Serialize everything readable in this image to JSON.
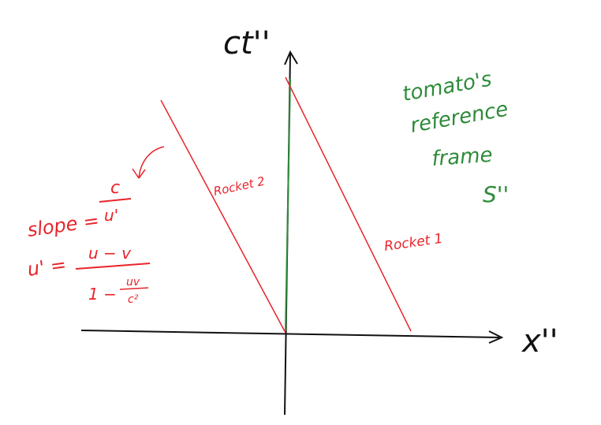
{
  "axes": {
    "x_label": "x''",
    "y_label": "ct''"
  },
  "rockets": [
    {
      "label": "Rocket 1"
    },
    {
      "label": "Rocket 2"
    }
  ],
  "frame_note": {
    "line1": "tomato's",
    "line2": "reference",
    "line3": "frame",
    "line4": "S''"
  },
  "formula": {
    "slope_lhs": "slope =",
    "slope_num": "c",
    "slope_den": "u'",
    "u_lhs": "u' =",
    "u_num": "u − v",
    "u_den_prefix": "1 −",
    "u_den_num": "uv",
    "u_den_den": "c²"
  },
  "colors": {
    "axes": "#111111",
    "rocket": "#e8242a",
    "note": "#2e8b3a",
    "formula": "#e8242a"
  }
}
